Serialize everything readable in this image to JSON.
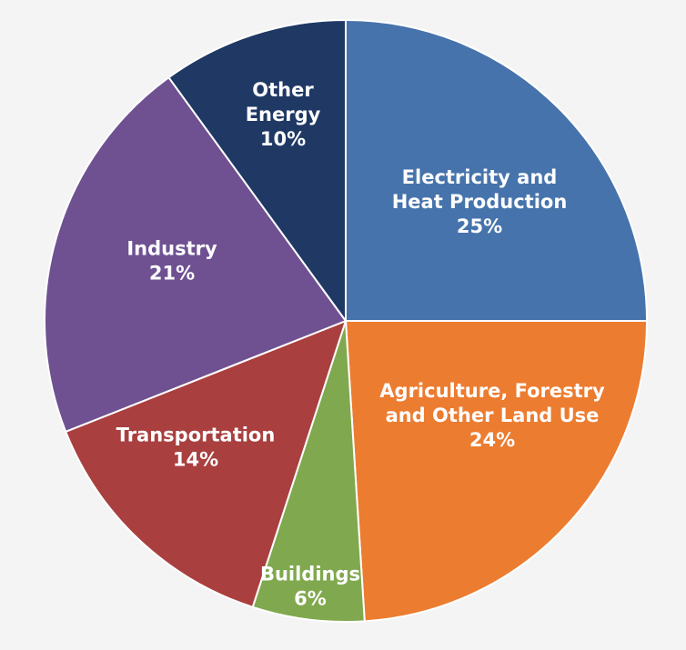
{
  "chart_data": {
    "type": "pie",
    "title": "",
    "slices": [
      {
        "label_lines": [
          "Electricity and",
          "Heat Production"
        ],
        "percent_label": "25%",
        "value": 25,
        "color": "#4673ab"
      },
      {
        "label_lines": [
          "Agriculture, Forestry",
          "and Other Land Use"
        ],
        "percent_label": "24%",
        "value": 24,
        "color": "#ec7c30"
      },
      {
        "label_lines": [
          "Buildings"
        ],
        "percent_label": "6%",
        "value": 6,
        "color": "#80a84e"
      },
      {
        "label_lines": [
          "Transportation"
        ],
        "percent_label": "14%",
        "value": 14,
        "color": "#aa3f3f"
      },
      {
        "label_lines": [
          "Industry"
        ],
        "percent_label": "21%",
        "value": 21,
        "color": "#6f5192"
      },
      {
        "label_lines": [
          "Other",
          "Energy"
        ],
        "percent_label": "10%",
        "value": 10,
        "color": "#1f3864"
      }
    ]
  }
}
